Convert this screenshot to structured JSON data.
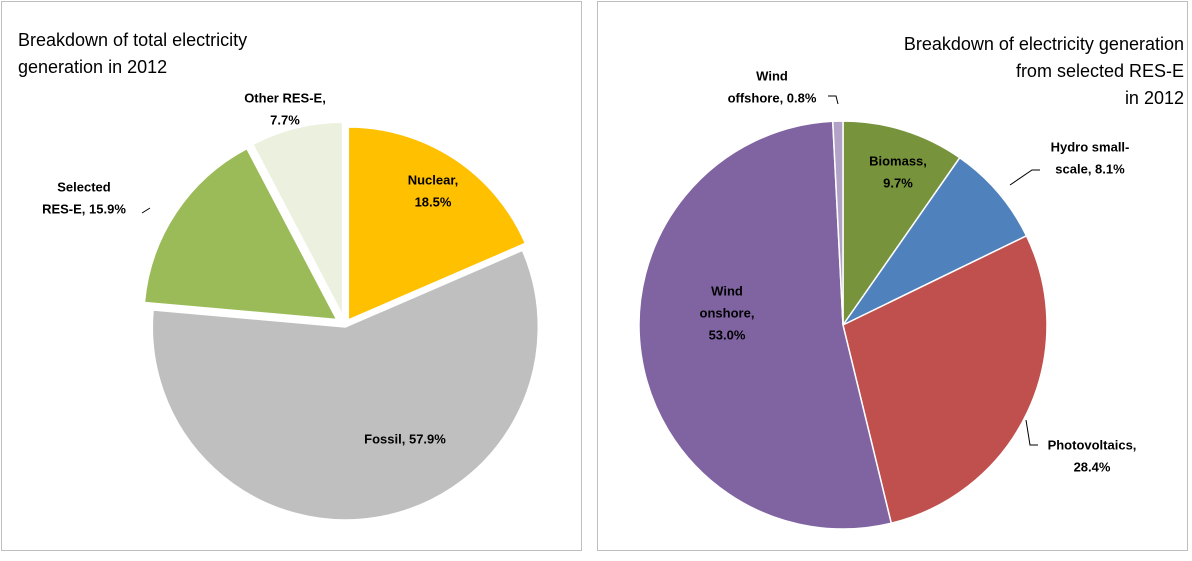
{
  "chart_data": [
    {
      "type": "pie",
      "title": [
        "Breakdown of total electricity",
        "generation in 2012"
      ],
      "values": [
        18.5,
        57.9,
        15.9,
        7.7
      ],
      "value_labels": [
        [
          "Nuclear,",
          "18.5%"
        ],
        [
          "Fossil, 57.9%"
        ],
        [
          "Selected",
          "RES-E, 15.9%"
        ],
        [
          "Other RES-E,",
          "7.7%"
        ]
      ],
      "colors": [
        "#ffc000",
        "#bfbfbf",
        "#9bbb59",
        "#ebf1de"
      ]
    },
    {
      "type": "pie",
      "title": [
        "Breakdown of electricity generation",
        "from selected RES-E",
        "in 2012"
      ],
      "values": [
        9.7,
        8.1,
        28.4,
        53.0,
        0.8
      ],
      "value_labels": [
        [
          "Biomass,",
          "9.7%"
        ],
        [
          "Hydro small-",
          "scale, 8.1%"
        ],
        [
          "Photovoltaics,",
          "28.4%"
        ],
        [
          "Wind",
          "onshore,",
          "53.0%"
        ],
        [
          "Wind",
          "offshore, 0.8%"
        ]
      ],
      "colors": [
        "#77933c",
        "#4f81bd",
        "#c0504d",
        "#8064a2",
        "#b3a2c7"
      ]
    }
  ]
}
